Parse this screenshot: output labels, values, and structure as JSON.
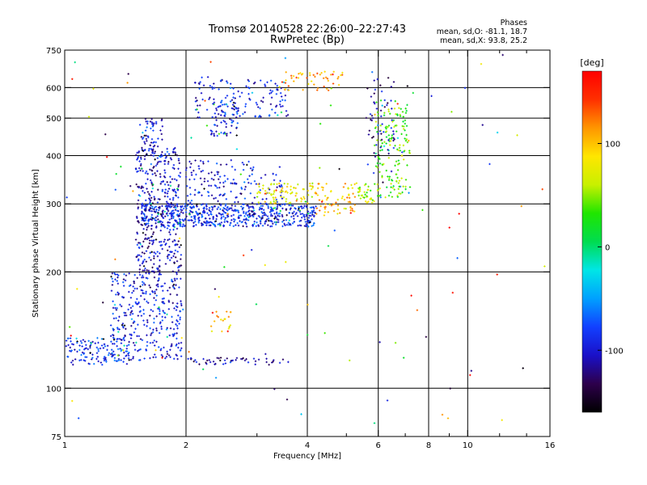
{
  "figure": {
    "title": "Tromsø 20140528 22:26:00–22:27:43",
    "subtitle": "RwPretec (Bp)",
    "stats": {
      "header": "Phases",
      "o_mode": "mean, sd,O: -81.1, 18.7",
      "x_mode": "mean, sd,X: 93.8, 25.2"
    }
  },
  "chart_data": {
    "type": "scatter",
    "xlabel": "Frequency [MHz]",
    "ylabel": "Stationary phase Virtual Height [km]",
    "x_scale": "log",
    "y_scale": "log",
    "xlim": [
      1,
      16
    ],
    "ylim": [
      75,
      750
    ],
    "x_ticks": [
      1,
      2,
      4,
      6,
      8,
      10,
      16
    ],
    "x_tick_labels": [
      "1",
      "2",
      "4",
      "6",
      "8",
      "10",
      "16"
    ],
    "x_minor_ticks": [
      3,
      5,
      7,
      9,
      12,
      14
    ],
    "y_ticks": [
      75,
      100,
      200,
      300,
      400,
      500,
      600,
      750
    ],
    "y_tick_labels": [
      "75",
      "100",
      "200",
      "300",
      "400",
      "500",
      "600",
      "750"
    ],
    "x_gridlines": [
      2,
      4,
      6,
      8,
      10
    ],
    "y_gridlines": [
      100,
      200,
      300,
      400,
      500,
      600
    ],
    "grid": true,
    "colorbar": {
      "label": "[deg]",
      "range": [
        -160,
        170
      ],
      "ticks": [
        100,
        0,
        -100
      ],
      "tick_labels": [
        "100",
        "0",
        "-100"
      ],
      "stops": [
        "#000000",
        "#2d004b",
        "#1a10c8",
        "#1240ff",
        "#00a0ff",
        "#00e6e6",
        "#00dc50",
        "#20e600",
        "#c8f000",
        "#ffe600",
        "#ff9600",
        "#ff3000",
        "#ff0000"
      ]
    },
    "series": [
      {
        "x_range": [
          1.0,
          1.45
        ],
        "y_range": [
          115,
          135
        ],
        "phase": -85,
        "count": 130
      },
      {
        "x_range": [
          1.3,
          1.95
        ],
        "y_range": [
          118,
          200
        ],
        "phase": -95,
        "count": 340
      },
      {
        "x_range": [
          1.5,
          1.95
        ],
        "y_range": [
          200,
          420
        ],
        "phase": -105,
        "count": 380
      },
      {
        "x_range": [
          1.55,
          1.75
        ],
        "y_range": [
          400,
          500
        ],
        "phase": -100,
        "count": 60
      },
      {
        "x_range": [
          1.55,
          4.2
        ],
        "y_range": [
          262,
          300
        ],
        "phase": -90,
        "count": 620
      },
      {
        "x_range": [
          2.0,
          3.5
        ],
        "y_range": [
          300,
          390
        ],
        "phase": -95,
        "count": 150
      },
      {
        "x_range": [
          3.0,
          4.2
        ],
        "y_range": [
          300,
          340
        ],
        "phase": 80,
        "count": 90
      },
      {
        "x_range": [
          4.2,
          5.3
        ],
        "y_range": [
          280,
          340
        ],
        "phase": 100,
        "count": 70
      },
      {
        "x_range": [
          5.3,
          6.1
        ],
        "y_range": [
          300,
          340
        ],
        "phase": 60,
        "count": 40
      },
      {
        "x_range": [
          5.9,
          7.2
        ],
        "y_range": [
          310,
          560
        ],
        "phase": 40,
        "count": 160
      },
      {
        "x_range": [
          5.6,
          6.6
        ],
        "y_range": [
          330,
          640
        ],
        "phase": -110,
        "count": 60
      },
      {
        "x_range": [
          2.3,
          2.7
        ],
        "y_range": [
          450,
          550
        ],
        "phase": -90,
        "count": 70
      },
      {
        "x_range": [
          2.1,
          3.6
        ],
        "y_range": [
          500,
          640
        ],
        "phase": -95,
        "count": 130
      },
      {
        "x_range": [
          3.5,
          4.9
        ],
        "y_range": [
          590,
          660
        ],
        "phase": 110,
        "count": 50
      },
      {
        "x_range": [
          2.0,
          3.6
        ],
        "y_range": [
          115,
          120
        ],
        "phase": -110,
        "count": 50
      },
      {
        "x_range": [
          2.3,
          2.6
        ],
        "y_range": [
          140,
          158
        ],
        "phase": 100,
        "count": 20
      },
      {
        "x_range": [
          1.0,
          16.0
        ],
        "y_range": [
          78,
          740
        ],
        "phase": 0,
        "count": 110
      }
    ]
  }
}
